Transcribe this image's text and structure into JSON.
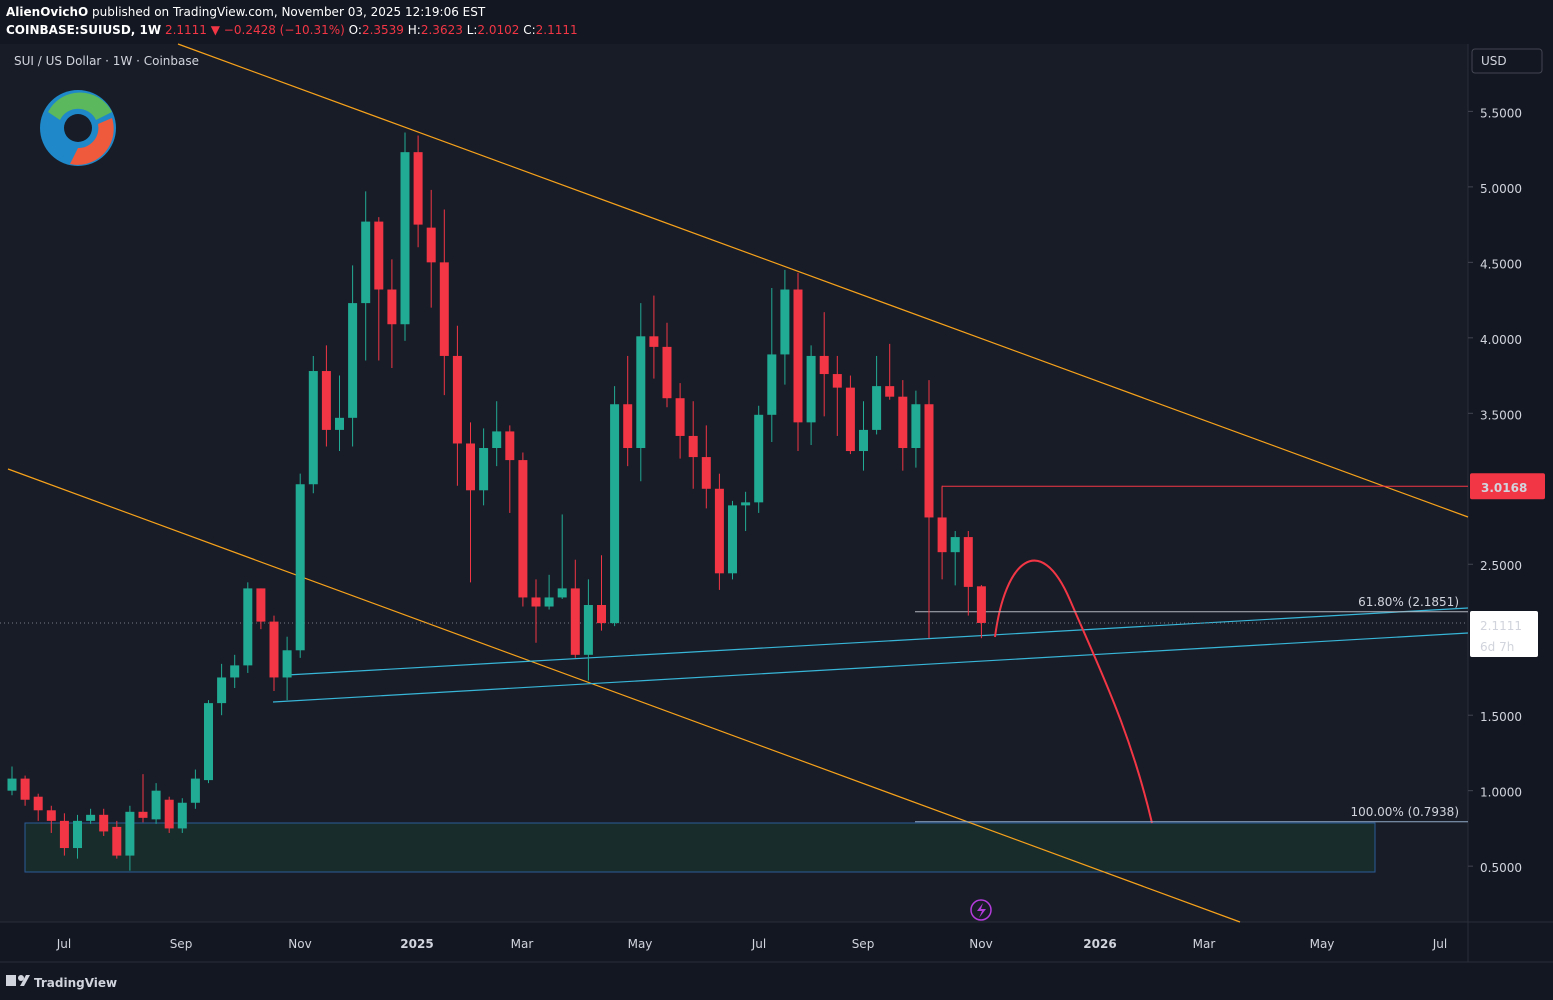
{
  "header": {
    "author": "AlienOvichO",
    "published": "published on TradingView.com, November 03, 2025 12:19:06 EST",
    "symbol": "COINBASE:SUIUSD, 1W",
    "last": "2.1111",
    "change": "▼ −0.2428 (−10.31%)",
    "ohlc": [
      {
        "k": "O:",
        "v": "2.3539"
      },
      {
        "k": "H:",
        "v": "2.3623"
      },
      {
        "k": "L:",
        "v": "2.0102"
      },
      {
        "k": "C:",
        "v": "2.1111"
      }
    ]
  },
  "footer": "TradingView",
  "chart_data": {
    "type": "candlestick",
    "title": "SUI / US Dollar · 1W · Coinbase",
    "currency": "USD",
    "up_color": "#22ab94",
    "down_color": "#f23645",
    "open": [
      1.0,
      1.08,
      0.96,
      0.87,
      0.8,
      0.62,
      0.8,
      0.84,
      0.76,
      0.57,
      0.86,
      0.81,
      0.94,
      0.75,
      0.92,
      1.07,
      1.58,
      1.75,
      1.83,
      2.34,
      2.12,
      1.75,
      1.93,
      3.03,
      3.78,
      3.39,
      3.47,
      4.23,
      4.77,
      4.32,
      4.09,
      5.23,
      4.73,
      4.5,
      3.88,
      3.3,
      2.99,
      3.27,
      3.38,
      3.19,
      2.28,
      2.22,
      2.28,
      2.34,
      1.9,
      2.23,
      2.11,
      3.56,
      3.27,
      4.01,
      3.94,
      3.6,
      3.35,
      3.21,
      3.0,
      2.44,
      2.89,
      2.91,
      3.49,
      3.89,
      4.32,
      3.44,
      3.88,
      3.76,
      3.67,
      3.25,
      3.39,
      3.68,
      3.61,
      3.27,
      3.56,
      2.81,
      2.58,
      2.68,
      2.3539
    ],
    "high": [
      1.16,
      1.1,
      0.98,
      0.9,
      0.85,
      0.84,
      0.88,
      0.88,
      0.8,
      0.9,
      1.11,
      1.05,
      0.96,
      0.95,
      1.14,
      1.6,
      1.84,
      1.9,
      2.38,
      2.34,
      2.16,
      2.02,
      3.1,
      3.88,
      3.95,
      3.75,
      4.48,
      4.97,
      4.8,
      4.52,
      5.36,
      5.34,
      4.98,
      4.85,
      4.08,
      3.44,
      3.4,
      3.58,
      3.42,
      3.24,
      2.4,
      2.43,
      2.83,
      2.53,
      2.4,
      2.56,
      3.68,
      3.88,
      4.23,
      4.28,
      4.1,
      3.7,
      3.58,
      3.42,
      3.1,
      2.92,
      2.98,
      3.55,
      4.33,
      4.45,
      4.43,
      3.95,
      4.17,
      3.88,
      3.75,
      3.58,
      3.88,
      3.96,
      3.72,
      3.65,
      3.72,
      3.02,
      2.72,
      2.72,
      2.3623
    ],
    "low": [
      0.97,
      0.9,
      0.8,
      0.72,
      0.57,
      0.55,
      0.78,
      0.7,
      0.55,
      0.47,
      0.79,
      0.78,
      0.72,
      0.72,
      0.88,
      1.05,
      1.5,
      1.68,
      1.78,
      2.07,
      1.66,
      1.6,
      1.88,
      2.97,
      3.28,
      3.25,
      3.28,
      3.85,
      3.85,
      3.8,
      3.98,
      4.6,
      4.2,
      3.62,
      3.02,
      2.38,
      2.89,
      3.15,
      2.84,
      2.22,
      1.98,
      2.2,
      2.27,
      1.88,
      1.73,
      2.06,
      2.09,
      3.15,
      3.05,
      3.73,
      3.54,
      3.2,
      3.0,
      2.87,
      2.33,
      2.4,
      2.72,
      2.84,
      3.31,
      3.69,
      3.25,
      3.29,
      3.48,
      3.35,
      3.23,
      3.12,
      3.36,
      3.59,
      3.12,
      3.14,
      2.01,
      2.4,
      2.36,
      2.16,
      2.0102
    ],
    "close": [
      1.08,
      0.94,
      0.87,
      0.8,
      0.62,
      0.8,
      0.84,
      0.73,
      0.57,
      0.86,
      0.82,
      1.0,
      0.75,
      0.92,
      1.08,
      1.58,
      1.75,
      1.83,
      2.34,
      2.12,
      1.75,
      1.93,
      3.03,
      3.78,
      3.39,
      3.47,
      4.23,
      4.77,
      4.32,
      4.09,
      5.23,
      4.75,
      4.5,
      3.88,
      3.3,
      2.99,
      3.27,
      3.38,
      3.19,
      2.28,
      2.22,
      2.28,
      2.34,
      1.9,
      2.23,
      2.11,
      3.56,
      3.27,
      4.01,
      3.94,
      3.6,
      3.35,
      3.21,
      3.0,
      2.44,
      2.89,
      2.91,
      3.49,
      3.89,
      4.32,
      3.44,
      3.88,
      3.76,
      3.67,
      3.25,
      3.39,
      3.68,
      3.61,
      3.27,
      3.56,
      2.81,
      2.58,
      2.68,
      2.35,
      2.1111
    ],
    "ylim": [
      0.13,
      5.92
    ],
    "yticks": [
      {
        "value": 0.5,
        "label": "0.5000"
      },
      {
        "value": 1.0,
        "label": "1.0000"
      },
      {
        "value": 1.5,
        "label": "1.5000"
      },
      {
        "value": 2.5,
        "label": "2.5000"
      },
      {
        "value": 3.5,
        "label": "3.5000"
      },
      {
        "value": 4.0,
        "label": "4.0000"
      },
      {
        "value": 4.5,
        "label": "4.5000"
      },
      {
        "value": 5.0,
        "label": "5.0000"
      },
      {
        "value": 5.5,
        "label": "5.5000"
      }
    ],
    "x_axis_labels": [
      "Jul",
      "Sep",
      "Nov",
      "2025",
      "Mar",
      "May",
      "Jul",
      "Sep",
      "Nov",
      "2026",
      "Mar",
      "May",
      "Jul"
    ],
    "grid": false,
    "fib_levels": [
      {
        "value": 2.1851,
        "label": "61.80% (2.1851)"
      },
      {
        "value": 0.7938,
        "label": "100.00% (0.7938)"
      }
    ],
    "price_line": {
      "value": 3.0168,
      "label": "3.0168"
    },
    "last_price": {
      "value": 2.1111,
      "label": "2.1111",
      "countdown": "6d 7h"
    }
  }
}
